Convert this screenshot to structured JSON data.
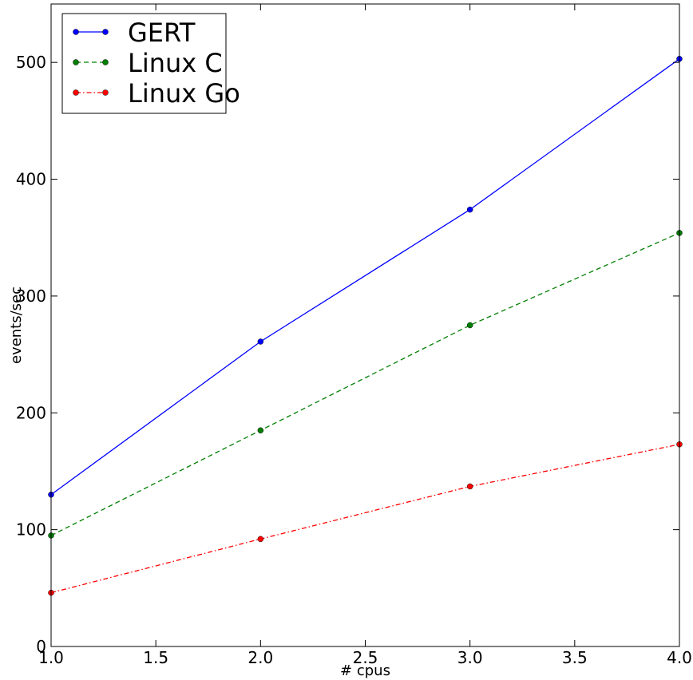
{
  "chart_data": {
    "type": "line",
    "title": "",
    "xlabel": "# cpus",
    "ylabel": "events/sec",
    "x": [
      1.0,
      2.0,
      3.0,
      4.0
    ],
    "xlim": [
      1.0,
      4.0
    ],
    "ylim": [
      0,
      550
    ],
    "xticks": [
      "1.0",
      "1.5",
      "2.0",
      "2.5",
      "3.0",
      "3.5",
      "4.0"
    ],
    "yticks": [
      "0",
      "100",
      "200",
      "300",
      "400",
      "500"
    ],
    "grid": false,
    "legend_position": "top-left",
    "series": [
      {
        "name": "GERT",
        "values": [
          130,
          261,
          374,
          503
        ],
        "color": "#0000ff",
        "line_style": "solid"
      },
      {
        "name": "Linux C",
        "values": [
          95,
          185,
          275,
          354
        ],
        "color": "#007f00",
        "line_style": "dashed"
      },
      {
        "name": "Linux Go",
        "values": [
          46,
          92,
          137,
          173
        ],
        "color": "#ff0000",
        "line_style": "dash-dot"
      }
    ]
  }
}
